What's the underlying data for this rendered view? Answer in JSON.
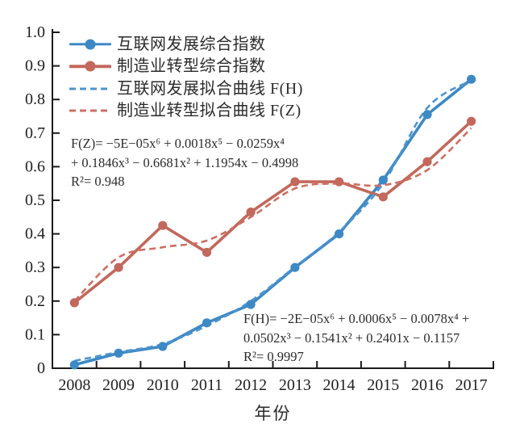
{
  "chart_data": {
    "type": "line",
    "title": "",
    "xlabel": "年份",
    "ylabel": "",
    "ylim": [
      0,
      1.0
    ],
    "grid": false,
    "legend_position": "top-left-inside",
    "x_categories": [
      "2008",
      "2009",
      "2010",
      "2011",
      "2012",
      "2013",
      "2014",
      "2015",
      "2016",
      "2017"
    ],
    "y_tick_labels": [
      "0",
      "0.1",
      "0.2",
      "0.3",
      "0.4",
      "0.5",
      "0.6",
      "0.7",
      "0.8",
      "0.9",
      "1.0"
    ],
    "y_tick_values": [
      0,
      0.1,
      0.2,
      0.3,
      0.4,
      0.5,
      0.6,
      0.7,
      0.8,
      0.9,
      1.0
    ],
    "series": [
      {
        "name": "互联网发展综合指数",
        "type": "line",
        "style": "solid",
        "marker": "circle",
        "color": "#3d89c5",
        "values": [
          0.01,
          0.045,
          0.065,
          0.135,
          0.19,
          0.3,
          0.4,
          0.56,
          0.755,
          0.86
        ]
      },
      {
        "name": "制造业转型综合指数",
        "type": "line",
        "style": "solid",
        "marker": "circle",
        "color": "#c2685c",
        "values": [
          0.195,
          0.3,
          0.425,
          0.345,
          0.465,
          0.555,
          0.555,
          0.51,
          0.615,
          0.735
        ]
      },
      {
        "name": "互联网发展拟合曲线 F(H)",
        "type": "fit-curve",
        "style": "dashed",
        "marker": "none",
        "color": "#4f94cf",
        "values": [
          0.022,
          0.048,
          0.072,
          0.126,
          0.2,
          0.302,
          0.406,
          0.55,
          0.775,
          0.857
        ]
      },
      {
        "name": "制造业转型拟合曲线 F(Z)",
        "type": "fit-curve",
        "style": "dashed",
        "marker": "none",
        "color": "#cb7063",
        "values": [
          0.2,
          0.33,
          0.36,
          0.38,
          0.45,
          0.535,
          0.55,
          0.545,
          0.59,
          0.715
        ]
      }
    ],
    "axis_color": "#1a1a1a"
  },
  "annotations": {
    "fz": {
      "lines": [
        "F(Z)= −5E−05x⁶ + 0.0018x⁵ − 0.0259x⁴",
        "+ 0.1846x³ − 0.6681x² + 1.1954x − 0.4998",
        "R²= 0.948"
      ]
    },
    "fh": {
      "lines": [
        "F(H)= −2E−05x⁶ + 0.0006x⁵ − 0.0078x⁴ +",
        "0.0502x³ − 0.1541x² + 0.2401x − 0.1157",
        "R²= 0.9997"
      ]
    }
  }
}
